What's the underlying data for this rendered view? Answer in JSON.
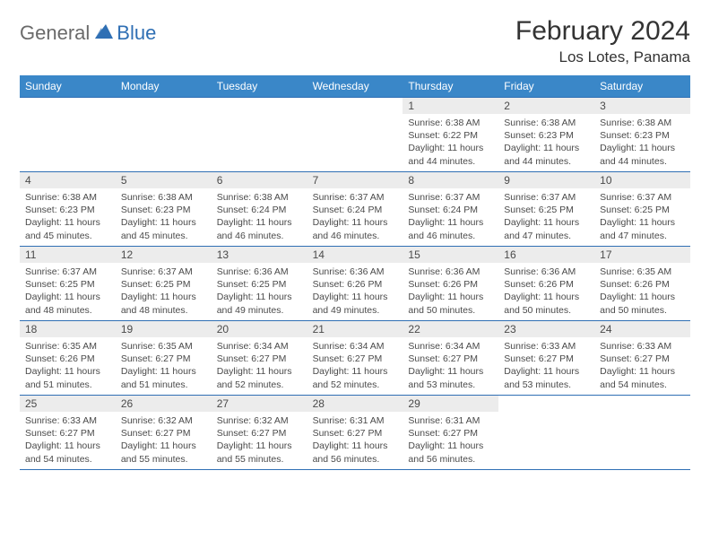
{
  "logo": {
    "part1": "General",
    "part2": "Blue"
  },
  "title": "February 2024",
  "location": "Los Lotes, Panama",
  "colors": {
    "header_bg": "#3a87c8",
    "header_text": "#ffffff",
    "rule": "#2f6fb4",
    "daynum_bg": "#ececec",
    "text": "#4a4a4a",
    "logo_gray": "#6a6a6a",
    "logo_blue": "#2f6fb4"
  },
  "day_headers": [
    "Sunday",
    "Monday",
    "Tuesday",
    "Wednesday",
    "Thursday",
    "Friday",
    "Saturday"
  ],
  "weeks": [
    [
      null,
      null,
      null,
      null,
      {
        "n": "1",
        "sr": "Sunrise: 6:38 AM",
        "ss": "Sunset: 6:22 PM",
        "d1": "Daylight: 11 hours",
        "d2": "and 44 minutes."
      },
      {
        "n": "2",
        "sr": "Sunrise: 6:38 AM",
        "ss": "Sunset: 6:23 PM",
        "d1": "Daylight: 11 hours",
        "d2": "and 44 minutes."
      },
      {
        "n": "3",
        "sr": "Sunrise: 6:38 AM",
        "ss": "Sunset: 6:23 PM",
        "d1": "Daylight: 11 hours",
        "d2": "and 44 minutes."
      }
    ],
    [
      {
        "n": "4",
        "sr": "Sunrise: 6:38 AM",
        "ss": "Sunset: 6:23 PM",
        "d1": "Daylight: 11 hours",
        "d2": "and 45 minutes."
      },
      {
        "n": "5",
        "sr": "Sunrise: 6:38 AM",
        "ss": "Sunset: 6:23 PM",
        "d1": "Daylight: 11 hours",
        "d2": "and 45 minutes."
      },
      {
        "n": "6",
        "sr": "Sunrise: 6:38 AM",
        "ss": "Sunset: 6:24 PM",
        "d1": "Daylight: 11 hours",
        "d2": "and 46 minutes."
      },
      {
        "n": "7",
        "sr": "Sunrise: 6:37 AM",
        "ss": "Sunset: 6:24 PM",
        "d1": "Daylight: 11 hours",
        "d2": "and 46 minutes."
      },
      {
        "n": "8",
        "sr": "Sunrise: 6:37 AM",
        "ss": "Sunset: 6:24 PM",
        "d1": "Daylight: 11 hours",
        "d2": "and 46 minutes."
      },
      {
        "n": "9",
        "sr": "Sunrise: 6:37 AM",
        "ss": "Sunset: 6:25 PM",
        "d1": "Daylight: 11 hours",
        "d2": "and 47 minutes."
      },
      {
        "n": "10",
        "sr": "Sunrise: 6:37 AM",
        "ss": "Sunset: 6:25 PM",
        "d1": "Daylight: 11 hours",
        "d2": "and 47 minutes."
      }
    ],
    [
      {
        "n": "11",
        "sr": "Sunrise: 6:37 AM",
        "ss": "Sunset: 6:25 PM",
        "d1": "Daylight: 11 hours",
        "d2": "and 48 minutes."
      },
      {
        "n": "12",
        "sr": "Sunrise: 6:37 AM",
        "ss": "Sunset: 6:25 PM",
        "d1": "Daylight: 11 hours",
        "d2": "and 48 minutes."
      },
      {
        "n": "13",
        "sr": "Sunrise: 6:36 AM",
        "ss": "Sunset: 6:25 PM",
        "d1": "Daylight: 11 hours",
        "d2": "and 49 minutes."
      },
      {
        "n": "14",
        "sr": "Sunrise: 6:36 AM",
        "ss": "Sunset: 6:26 PM",
        "d1": "Daylight: 11 hours",
        "d2": "and 49 minutes."
      },
      {
        "n": "15",
        "sr": "Sunrise: 6:36 AM",
        "ss": "Sunset: 6:26 PM",
        "d1": "Daylight: 11 hours",
        "d2": "and 50 minutes."
      },
      {
        "n": "16",
        "sr": "Sunrise: 6:36 AM",
        "ss": "Sunset: 6:26 PM",
        "d1": "Daylight: 11 hours",
        "d2": "and 50 minutes."
      },
      {
        "n": "17",
        "sr": "Sunrise: 6:35 AM",
        "ss": "Sunset: 6:26 PM",
        "d1": "Daylight: 11 hours",
        "d2": "and 50 minutes."
      }
    ],
    [
      {
        "n": "18",
        "sr": "Sunrise: 6:35 AM",
        "ss": "Sunset: 6:26 PM",
        "d1": "Daylight: 11 hours",
        "d2": "and 51 minutes."
      },
      {
        "n": "19",
        "sr": "Sunrise: 6:35 AM",
        "ss": "Sunset: 6:27 PM",
        "d1": "Daylight: 11 hours",
        "d2": "and 51 minutes."
      },
      {
        "n": "20",
        "sr": "Sunrise: 6:34 AM",
        "ss": "Sunset: 6:27 PM",
        "d1": "Daylight: 11 hours",
        "d2": "and 52 minutes."
      },
      {
        "n": "21",
        "sr": "Sunrise: 6:34 AM",
        "ss": "Sunset: 6:27 PM",
        "d1": "Daylight: 11 hours",
        "d2": "and 52 minutes."
      },
      {
        "n": "22",
        "sr": "Sunrise: 6:34 AM",
        "ss": "Sunset: 6:27 PM",
        "d1": "Daylight: 11 hours",
        "d2": "and 53 minutes."
      },
      {
        "n": "23",
        "sr": "Sunrise: 6:33 AM",
        "ss": "Sunset: 6:27 PM",
        "d1": "Daylight: 11 hours",
        "d2": "and 53 minutes."
      },
      {
        "n": "24",
        "sr": "Sunrise: 6:33 AM",
        "ss": "Sunset: 6:27 PM",
        "d1": "Daylight: 11 hours",
        "d2": "and 54 minutes."
      }
    ],
    [
      {
        "n": "25",
        "sr": "Sunrise: 6:33 AM",
        "ss": "Sunset: 6:27 PM",
        "d1": "Daylight: 11 hours",
        "d2": "and 54 minutes."
      },
      {
        "n": "26",
        "sr": "Sunrise: 6:32 AM",
        "ss": "Sunset: 6:27 PM",
        "d1": "Daylight: 11 hours",
        "d2": "and 55 minutes."
      },
      {
        "n": "27",
        "sr": "Sunrise: 6:32 AM",
        "ss": "Sunset: 6:27 PM",
        "d1": "Daylight: 11 hours",
        "d2": "and 55 minutes."
      },
      {
        "n": "28",
        "sr": "Sunrise: 6:31 AM",
        "ss": "Sunset: 6:27 PM",
        "d1": "Daylight: 11 hours",
        "d2": "and 56 minutes."
      },
      {
        "n": "29",
        "sr": "Sunrise: 6:31 AM",
        "ss": "Sunset: 6:27 PM",
        "d1": "Daylight: 11 hours",
        "d2": "and 56 minutes."
      },
      null,
      null
    ]
  ]
}
